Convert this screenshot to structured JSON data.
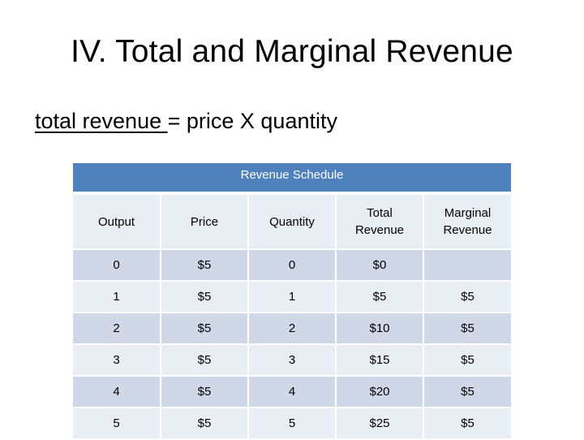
{
  "slide": {
    "title": "IV. Total and Marginal Revenue",
    "definition": {
      "term": "total revenue ",
      "equals": "= price X quantity"
    }
  },
  "table": {
    "caption": "Revenue Schedule",
    "headers": [
      "Output",
      "Price",
      "Quantity",
      "Total Revenue",
      "Marginal Revenue"
    ],
    "rows": [
      [
        "0",
        "$5",
        "0",
        "$0",
        ""
      ],
      [
        "1",
        "$5",
        "1",
        "$5",
        "$5"
      ],
      [
        "2",
        "$5",
        "2",
        "$10",
        "$5"
      ],
      [
        "3",
        "$5",
        "3",
        "$15",
        "$5"
      ],
      [
        "4",
        "$5",
        "4",
        "$20",
        "$5"
      ],
      [
        "5",
        "$5",
        "5",
        "$25",
        "$5"
      ]
    ]
  },
  "colors": {
    "header_band": "#4f81bd",
    "row_dark": "#d0d8e8",
    "row_light": "#e9edf4"
  }
}
